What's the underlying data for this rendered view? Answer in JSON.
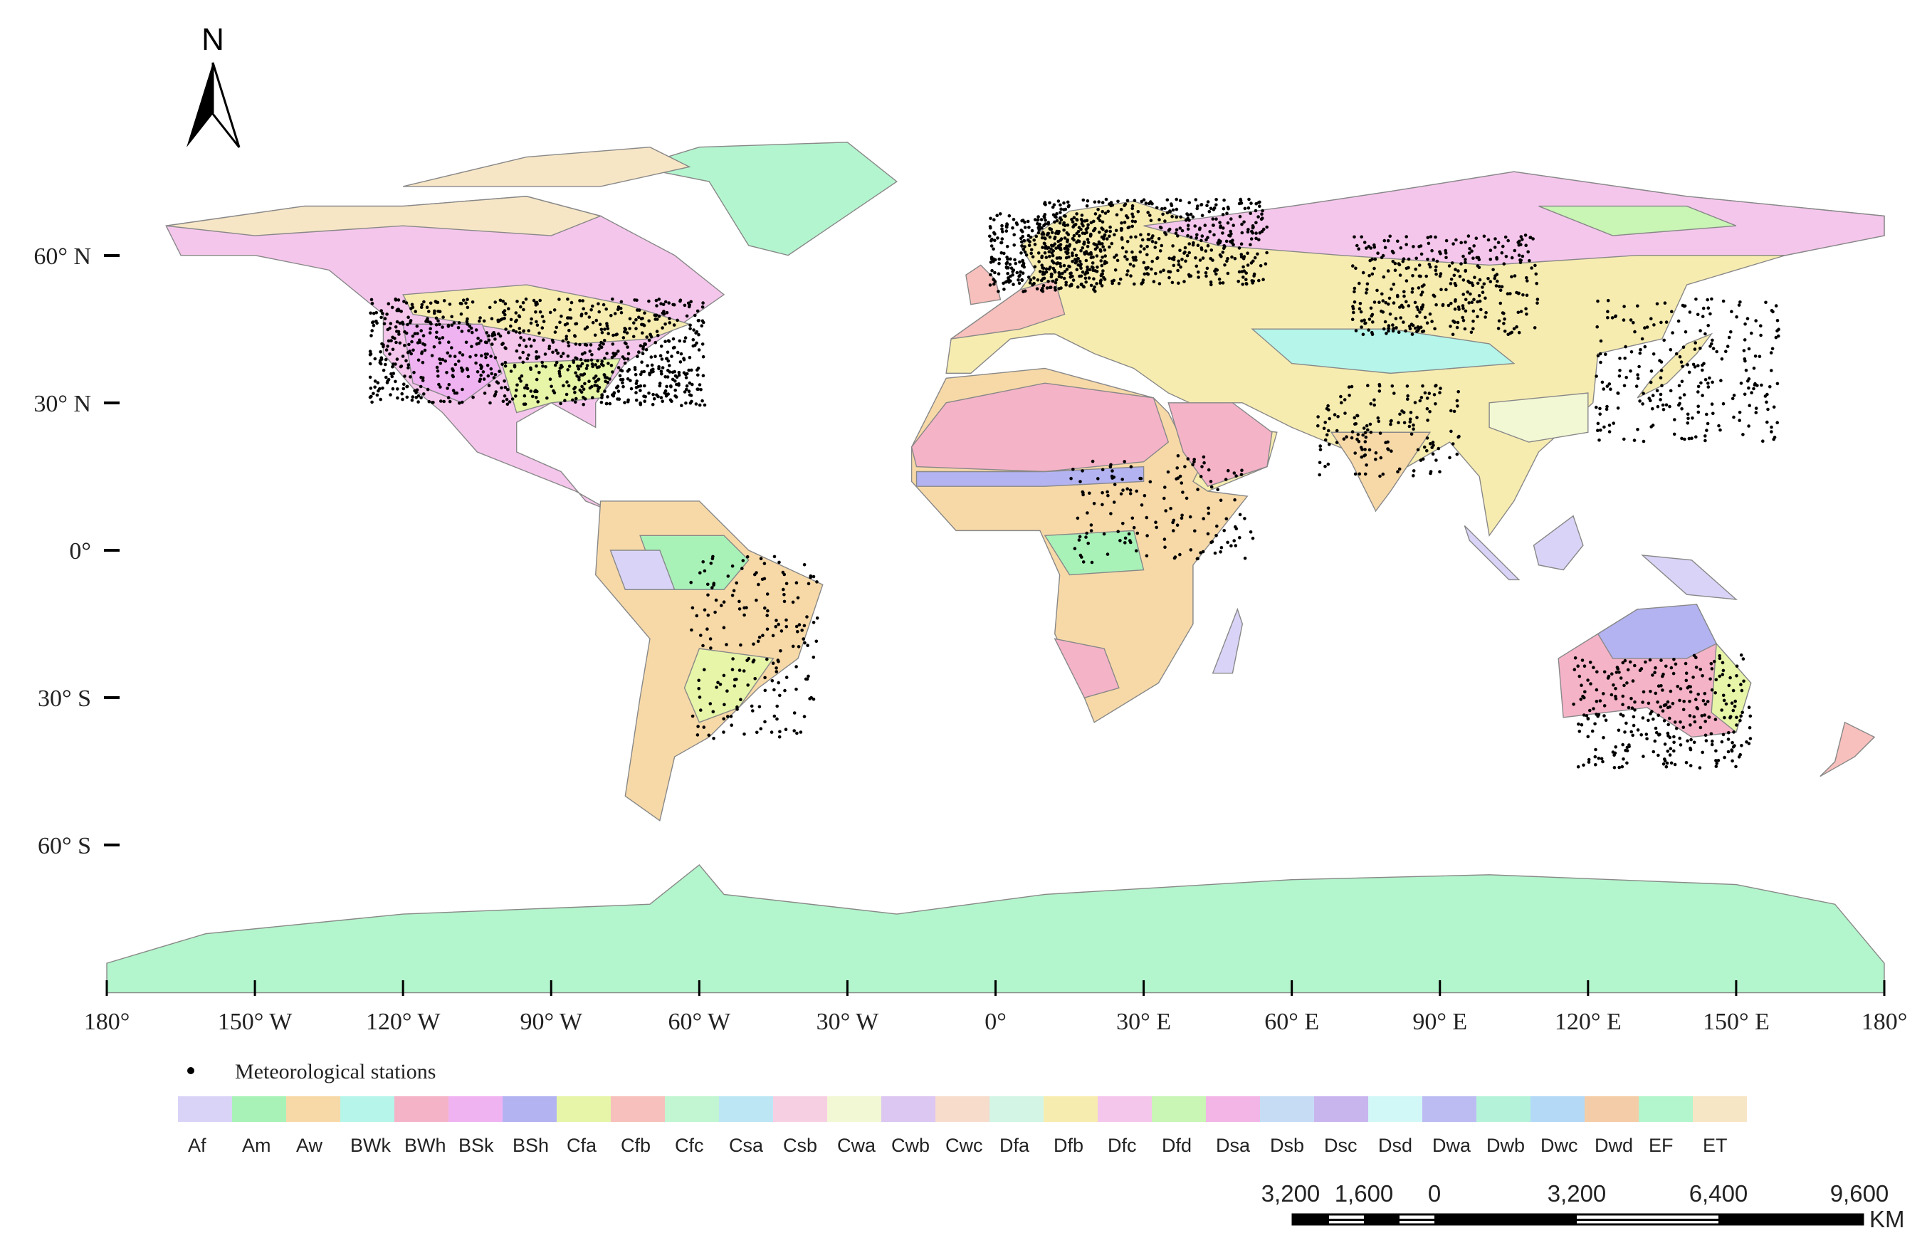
{
  "north_arrow": "N",
  "lat_labels": [
    "60° N",
    "30° N",
    "0°",
    "30° S",
    "60° S"
  ],
  "lon_labels": [
    "180°",
    "150° W",
    "120° W",
    "90° W",
    "60° W",
    "30° W",
    "0°",
    "30° E",
    "60° E",
    "90° E",
    "120° E",
    "150° E",
    "180°"
  ],
  "legend": {
    "stations_label": "Meteorological stations",
    "classes": [
      {
        "name": "Af",
        "color": "#d9d4f7"
      },
      {
        "name": "Am",
        "color": "#a8f2b8"
      },
      {
        "name": "Aw",
        "color": "#f7d9a8"
      },
      {
        "name": "BWk",
        "color": "#b5f5ea"
      },
      {
        "name": "BWh",
        "color": "#f5b3c8"
      },
      {
        "name": "BSk",
        "color": "#f0b3f2"
      },
      {
        "name": "BSh",
        "color": "#b3b3f2"
      },
      {
        "name": "Cfa",
        "color": "#e6f5a8"
      },
      {
        "name": "Cfb",
        "color": "#f7c0bc"
      },
      {
        "name": "Cfc",
        "color": "#c2f5d2"
      },
      {
        "name": "Csa",
        "color": "#bde6f5"
      },
      {
        "name": "Csb",
        "color": "#f7cfe3"
      },
      {
        "name": "Cwa",
        "color": "#f2f7d4"
      },
      {
        "name": "Cwb",
        "color": "#dcc6f2"
      },
      {
        "name": "Cwc",
        "color": "#f7dccc"
      },
      {
        "name": "Dfa",
        "color": "#d2f5e6"
      },
      {
        "name": "Dfb",
        "color": "#f7ecb0"
      },
      {
        "name": "Dfc",
        "color": "#f5c6ec"
      },
      {
        "name": "Dfd",
        "color": "#c9f5b5"
      },
      {
        "name": "Dsa",
        "color": "#f2b5e6"
      },
      {
        "name": "Dsb",
        "color": "#c6dcf5"
      },
      {
        "name": "Dsc",
        "color": "#c9b5ee"
      },
      {
        "name": "Dsd",
        "color": "#d2f7f7"
      },
      {
        "name": "Dwa",
        "color": "#bcbcf2"
      },
      {
        "name": "Dwb",
        "color": "#b5f2da"
      },
      {
        "name": "Dwc",
        "color": "#b3d9f7"
      },
      {
        "name": "Dwd",
        "color": "#f5cca8"
      },
      {
        "name": "EF",
        "color": "#b3f5cc"
      },
      {
        "name": "ET",
        "color": "#f7e6c6"
      }
    ]
  },
  "scale_bar": {
    "labels": [
      "3,200",
      "1,600",
      "0",
      "3,200",
      "6,400",
      "9,600"
    ],
    "unit": "KM"
  }
}
